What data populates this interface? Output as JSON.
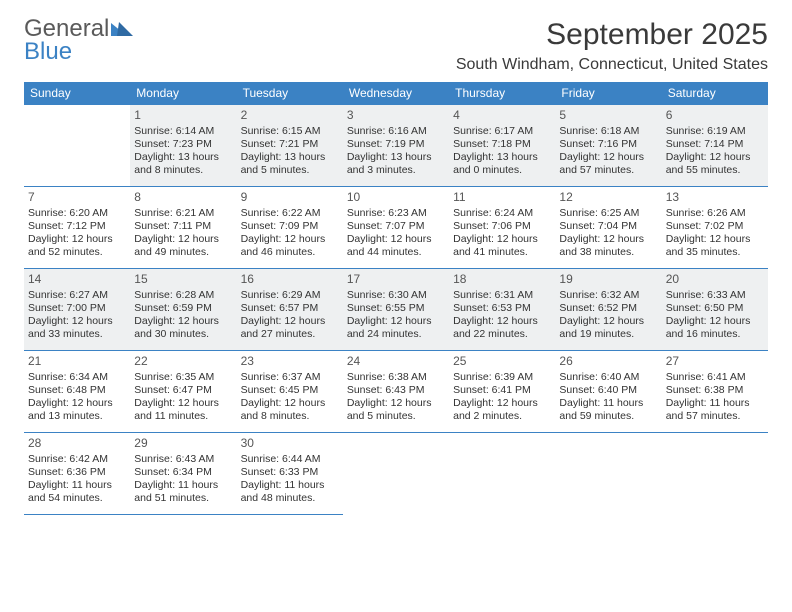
{
  "logo": {
    "part1": "General",
    "part2": "Blue",
    "triangle_color": "#3b82c4"
  },
  "title": "September 2025",
  "location": "South Windham, Connecticut, United States",
  "colors": {
    "header_bg": "#3b82c4",
    "header_text": "#ffffff",
    "cell_border": "#3b82c4",
    "shade_bg": "#eef0f1",
    "text": "#333333",
    "title_text": "#3a3a3a"
  },
  "day_headers": [
    "Sunday",
    "Monday",
    "Tuesday",
    "Wednesday",
    "Thursday",
    "Friday",
    "Saturday"
  ],
  "weeks": [
    [
      {
        "n": "",
        "sr": "",
        "ss": "",
        "dl": ""
      },
      {
        "n": "1",
        "sr": "Sunrise: 6:14 AM",
        "ss": "Sunset: 7:23 PM",
        "dl": "Daylight: 13 hours and 8 minutes."
      },
      {
        "n": "2",
        "sr": "Sunrise: 6:15 AM",
        "ss": "Sunset: 7:21 PM",
        "dl": "Daylight: 13 hours and 5 minutes."
      },
      {
        "n": "3",
        "sr": "Sunrise: 6:16 AM",
        "ss": "Sunset: 7:19 PM",
        "dl": "Daylight: 13 hours and 3 minutes."
      },
      {
        "n": "4",
        "sr": "Sunrise: 6:17 AM",
        "ss": "Sunset: 7:18 PM",
        "dl": "Daylight: 13 hours and 0 minutes."
      },
      {
        "n": "5",
        "sr": "Sunrise: 6:18 AM",
        "ss": "Sunset: 7:16 PM",
        "dl": "Daylight: 12 hours and 57 minutes."
      },
      {
        "n": "6",
        "sr": "Sunrise: 6:19 AM",
        "ss": "Sunset: 7:14 PM",
        "dl": "Daylight: 12 hours and 55 minutes."
      }
    ],
    [
      {
        "n": "7",
        "sr": "Sunrise: 6:20 AM",
        "ss": "Sunset: 7:12 PM",
        "dl": "Daylight: 12 hours and 52 minutes."
      },
      {
        "n": "8",
        "sr": "Sunrise: 6:21 AM",
        "ss": "Sunset: 7:11 PM",
        "dl": "Daylight: 12 hours and 49 minutes."
      },
      {
        "n": "9",
        "sr": "Sunrise: 6:22 AM",
        "ss": "Sunset: 7:09 PM",
        "dl": "Daylight: 12 hours and 46 minutes."
      },
      {
        "n": "10",
        "sr": "Sunrise: 6:23 AM",
        "ss": "Sunset: 7:07 PM",
        "dl": "Daylight: 12 hours and 44 minutes."
      },
      {
        "n": "11",
        "sr": "Sunrise: 6:24 AM",
        "ss": "Sunset: 7:06 PM",
        "dl": "Daylight: 12 hours and 41 minutes."
      },
      {
        "n": "12",
        "sr": "Sunrise: 6:25 AM",
        "ss": "Sunset: 7:04 PM",
        "dl": "Daylight: 12 hours and 38 minutes."
      },
      {
        "n": "13",
        "sr": "Sunrise: 6:26 AM",
        "ss": "Sunset: 7:02 PM",
        "dl": "Daylight: 12 hours and 35 minutes."
      }
    ],
    [
      {
        "n": "14",
        "sr": "Sunrise: 6:27 AM",
        "ss": "Sunset: 7:00 PM",
        "dl": "Daylight: 12 hours and 33 minutes."
      },
      {
        "n": "15",
        "sr": "Sunrise: 6:28 AM",
        "ss": "Sunset: 6:59 PM",
        "dl": "Daylight: 12 hours and 30 minutes."
      },
      {
        "n": "16",
        "sr": "Sunrise: 6:29 AM",
        "ss": "Sunset: 6:57 PM",
        "dl": "Daylight: 12 hours and 27 minutes."
      },
      {
        "n": "17",
        "sr": "Sunrise: 6:30 AM",
        "ss": "Sunset: 6:55 PM",
        "dl": "Daylight: 12 hours and 24 minutes."
      },
      {
        "n": "18",
        "sr": "Sunrise: 6:31 AM",
        "ss": "Sunset: 6:53 PM",
        "dl": "Daylight: 12 hours and 22 minutes."
      },
      {
        "n": "19",
        "sr": "Sunrise: 6:32 AM",
        "ss": "Sunset: 6:52 PM",
        "dl": "Daylight: 12 hours and 19 minutes."
      },
      {
        "n": "20",
        "sr": "Sunrise: 6:33 AM",
        "ss": "Sunset: 6:50 PM",
        "dl": "Daylight: 12 hours and 16 minutes."
      }
    ],
    [
      {
        "n": "21",
        "sr": "Sunrise: 6:34 AM",
        "ss": "Sunset: 6:48 PM",
        "dl": "Daylight: 12 hours and 13 minutes."
      },
      {
        "n": "22",
        "sr": "Sunrise: 6:35 AM",
        "ss": "Sunset: 6:47 PM",
        "dl": "Daylight: 12 hours and 11 minutes."
      },
      {
        "n": "23",
        "sr": "Sunrise: 6:37 AM",
        "ss": "Sunset: 6:45 PM",
        "dl": "Daylight: 12 hours and 8 minutes."
      },
      {
        "n": "24",
        "sr": "Sunrise: 6:38 AM",
        "ss": "Sunset: 6:43 PM",
        "dl": "Daylight: 12 hours and 5 minutes."
      },
      {
        "n": "25",
        "sr": "Sunrise: 6:39 AM",
        "ss": "Sunset: 6:41 PM",
        "dl": "Daylight: 12 hours and 2 minutes."
      },
      {
        "n": "26",
        "sr": "Sunrise: 6:40 AM",
        "ss": "Sunset: 6:40 PM",
        "dl": "Daylight: 11 hours and 59 minutes."
      },
      {
        "n": "27",
        "sr": "Sunrise: 6:41 AM",
        "ss": "Sunset: 6:38 PM",
        "dl": "Daylight: 11 hours and 57 minutes."
      }
    ],
    [
      {
        "n": "28",
        "sr": "Sunrise: 6:42 AM",
        "ss": "Sunset: 6:36 PM",
        "dl": "Daylight: 11 hours and 54 minutes."
      },
      {
        "n": "29",
        "sr": "Sunrise: 6:43 AM",
        "ss": "Sunset: 6:34 PM",
        "dl": "Daylight: 11 hours and 51 minutes."
      },
      {
        "n": "30",
        "sr": "Sunrise: 6:44 AM",
        "ss": "Sunset: 6:33 PM",
        "dl": "Daylight: 11 hours and 48 minutes."
      },
      {
        "n": "",
        "sr": "",
        "ss": "",
        "dl": ""
      },
      {
        "n": "",
        "sr": "",
        "ss": "",
        "dl": ""
      },
      {
        "n": "",
        "sr": "",
        "ss": "",
        "dl": ""
      },
      {
        "n": "",
        "sr": "",
        "ss": "",
        "dl": ""
      }
    ]
  ],
  "shaded_weeks": [
    0,
    2
  ]
}
